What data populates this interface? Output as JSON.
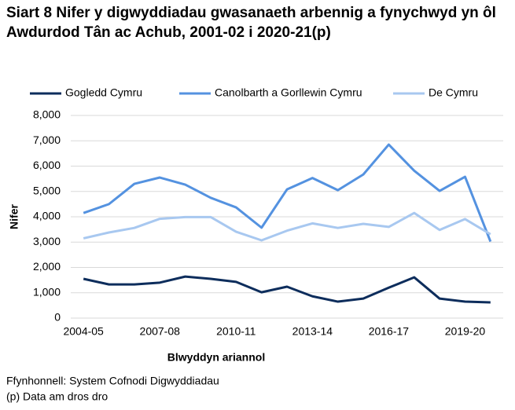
{
  "chart_data": {
    "type": "line",
    "title": "Siart 8 Nifer y digwyddiadau gwasanaeth arbennig a fynychwyd yn ôl Awdurdod Tân ac Achub, 2001-02 i 2020-21(p)",
    "x_label": "Blwyddyn ariannol",
    "y_label": "Nifer",
    "categories": [
      "2004-05",
      null,
      null,
      "2007-08",
      null,
      null,
      "2010-11",
      null,
      null,
      "2013-14",
      null,
      null,
      "2016-17",
      null,
      null,
      "2019-20",
      null
    ],
    "series": [
      {
        "name": "Gogledd Cymru",
        "color": "#0d2d5c",
        "values": [
          1550,
          1330,
          1330,
          1400,
          1640,
          1550,
          1430,
          1020,
          1240,
          860,
          650,
          770,
          1200,
          1610,
          770,
          650,
          620
        ]
      },
      {
        "name": "Canolbarth a Gorllewin Cymru",
        "color": "#5492e0",
        "values": [
          4150,
          4500,
          5300,
          5550,
          5270,
          4750,
          4370,
          3570,
          5080,
          5530,
          5050,
          5670,
          6850,
          5820,
          5020,
          5580,
          3020
        ]
      },
      {
        "name": "De Cymru",
        "color": "#a8c8f0",
        "values": [
          3150,
          3380,
          3560,
          3920,
          3990,
          3990,
          3410,
          3070,
          3450,
          3740,
          3560,
          3720,
          3600,
          4150,
          3480,
          3910,
          3310
        ]
      }
    ],
    "ylim": [
      0,
      8000
    ],
    "yticks": [
      0,
      {
        "value": 1000,
        "label": "1,000"
      },
      {
        "value": 2000,
        "label": "2,000"
      },
      {
        "value": 3000,
        "label": "3,000"
      },
      {
        "value": 4000,
        "label": "4,000"
      },
      {
        "value": 5000,
        "label": "5,000"
      },
      {
        "value": 6000,
        "label": "6,000"
      },
      {
        "value": 7000,
        "label": "7,000"
      },
      {
        "value": 8000,
        "label": "8,000"
      }
    ],
    "grid": true,
    "legend": "top",
    "source": "Ffynhonnell: System Cofnodi Digwyddiadau",
    "note": "(p) Data am dros dro"
  }
}
